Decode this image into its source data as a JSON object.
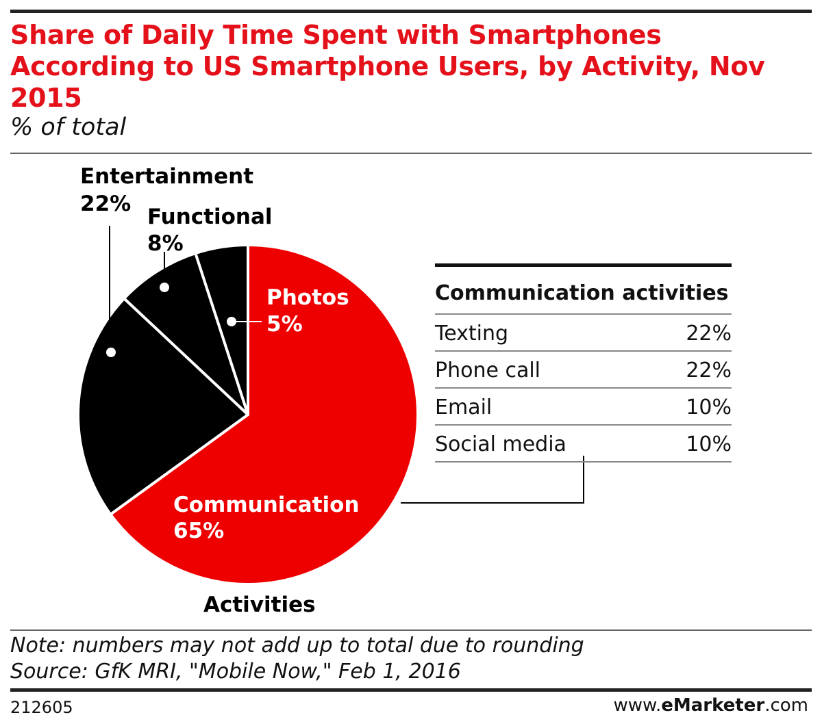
{
  "header": {
    "title": "Share of Daily Time Spent with Smartphones According to US Smartphone Users, by Activity, Nov 2015",
    "subtitle": "% of total"
  },
  "chart_data": {
    "type": "pie",
    "title": "Share of Daily Time Spent with Smartphones According to US Smartphone Users, by Activity, Nov 2015",
    "subtitle": "% of total",
    "xlabel": "Activities",
    "slices": [
      {
        "label": "Communication",
        "value": 65,
        "value_label": "65%",
        "color": "#ee0000"
      },
      {
        "label": "Entertainment",
        "value": 22,
        "value_label": "22%",
        "color": "#000000"
      },
      {
        "label": "Functional",
        "value": 8,
        "value_label": "8%",
        "color": "#000000"
      },
      {
        "label": "Photos",
        "value": 5,
        "value_label": "5%",
        "color": "#000000"
      }
    ],
    "breakdown": {
      "title": "Communication activities",
      "rows": [
        {
          "label": "Texting",
          "value": 22,
          "value_label": "22%"
        },
        {
          "label": "Phone call",
          "value": 22,
          "value_label": "22%"
        },
        {
          "label": "Email",
          "value": 10,
          "value_label": "10%"
        },
        {
          "label": "Social media",
          "value": 10,
          "value_label": "10%"
        }
      ]
    }
  },
  "footer": {
    "note": "Note: numbers may not add up to total due to rounding",
    "source": "Source: GfK MRI, \"Mobile Now,\" Feb 1, 2016",
    "id": "212605",
    "brand_prefix": "www.",
    "brand_bold": "eMarketer",
    "brand_suffix": ".com"
  },
  "colors": {
    "accent": "#e4111b",
    "slice_red": "#ee0000",
    "slice_black": "#000000"
  }
}
